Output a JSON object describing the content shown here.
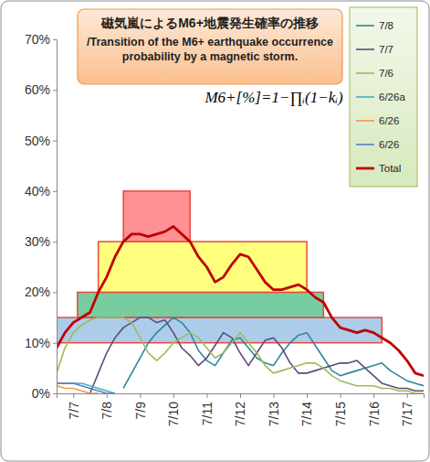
{
  "chart_data": {
    "type": "line",
    "title": "磁気嵐によるM6+地震発生確率の推移",
    "subtitle": "/Transition of the M6+ earthquake occurrence probability by a magnetic storm.",
    "annotation": "M6+[%]=1−∏ᵢ(1−kᵢ)",
    "categories": [
      null,
      null,
      "7/7",
      null,
      null,
      null,
      "7/8",
      null,
      null,
      null,
      "7/9",
      null,
      null,
      null,
      "7/10",
      null,
      null,
      null,
      "7/11",
      null,
      null,
      null,
      "7/12",
      null,
      null,
      null,
      "7/13",
      null,
      null,
      null,
      "7/14",
      null,
      null,
      null,
      "7/15",
      null,
      null,
      null,
      "7/16",
      null,
      null,
      null,
      "7/17",
      null,
      null
    ],
    "ylim": [
      0,
      70
    ],
    "yticks": [
      {
        "value": 0,
        "label": "0%"
      },
      {
        "value": 10,
        "label": "10%"
      },
      {
        "value": 20,
        "label": "20%"
      },
      {
        "value": 30,
        "label": "30%"
      },
      {
        "value": 40,
        "label": "40%"
      },
      {
        "value": 50,
        "label": "50%"
      },
      {
        "value": 60,
        "label": "60%"
      },
      {
        "value": 70,
        "label": "70%"
      }
    ],
    "grid": false,
    "legend": "top-right",
    "bands": [
      {
        "from": 0,
        "to": 39,
        "low": 10,
        "high": 15,
        "color": "#9dc3e6"
      },
      {
        "from": 2.5,
        "to": 32,
        "low": 15,
        "high": 20,
        "color": "#5fc48f"
      },
      {
        "from": 5,
        "to": 30,
        "low": 20,
        "high": 30,
        "color": "#ffff66"
      },
      {
        "from": 8,
        "to": 16,
        "low": 30,
        "high": 40,
        "color": "#ff7c80"
      }
    ],
    "series": [
      {
        "name": "7/8",
        "color": "#31859c",
        "values": [
          null,
          null,
          null,
          null,
          null,
          null,
          null,
          null,
          1,
          4,
          7,
          10,
          12,
          13.5,
          15,
          14,
          12,
          8.5,
          6.5,
          5.5,
          8,
          10.5,
          11,
          9,
          7,
          6,
          5.5,
          8,
          10,
          11.5,
          12,
          9.5,
          7,
          4.5,
          3.5,
          4,
          4.5,
          5,
          5.5,
          6,
          4.5,
          3.5,
          2.5,
          2,
          1.5
        ]
      },
      {
        "name": "7/7",
        "color": "#604a7b",
        "values": [
          null,
          null,
          null,
          null,
          0,
          4,
          8,
          11,
          13,
          14,
          15,
          15,
          14,
          14.5,
          12,
          9,
          7.5,
          5.5,
          7,
          9.5,
          12,
          11,
          8,
          5.5,
          8,
          10.5,
          11,
          9,
          6,
          4,
          4,
          4.5,
          5,
          5.5,
          6,
          6,
          6.5,
          5,
          3.5,
          2,
          1.5,
          1,
          1,
          0.5,
          0.5
        ]
      },
      {
        "name": "7/6",
        "color": "#9bbb59",
        "values": [
          4,
          9,
          12,
          13.5,
          14.5,
          15,
          15,
          15,
          15,
          14,
          11,
          8,
          6.5,
          8,
          10,
          11,
          12,
          11,
          9,
          7,
          8,
          10,
          12,
          10,
          8,
          5.5,
          4,
          4.5,
          5,
          5.5,
          6,
          6,
          5,
          3.5,
          2.5,
          2,
          1.5,
          1.5,
          1.5,
          1,
          1,
          0.5,
          0.5,
          0,
          0
        ]
      },
      {
        "name": "6/26a",
        "color": "#4bacc6",
        "values": [
          2,
          2,
          2,
          2,
          1.5,
          1,
          0.5,
          0,
          null,
          null,
          null,
          null,
          null,
          null,
          null,
          null,
          null,
          null,
          null,
          null,
          null,
          null,
          null,
          null,
          null,
          null,
          null,
          null,
          null,
          null,
          null,
          null,
          null,
          null,
          null,
          null,
          null,
          null,
          null,
          null,
          null,
          null,
          null,
          null,
          null
        ]
      },
      {
        "name": "6/26",
        "color": "#f79646",
        "values": [
          1.5,
          1,
          1,
          0.5,
          0,
          0,
          null,
          null,
          null,
          null,
          null,
          null,
          null,
          null,
          null,
          null,
          null,
          null,
          null,
          null,
          null,
          null,
          null,
          null,
          null,
          null,
          null,
          null,
          null,
          null,
          null,
          null,
          null,
          null,
          null,
          null,
          null,
          null,
          null,
          null,
          null,
          null,
          null,
          null,
          null
        ]
      },
      {
        "name": "6/26",
        "color": "#4f81bd",
        "values": [
          2,
          2,
          2,
          1.5,
          1,
          0.5,
          0,
          0,
          null,
          null,
          null,
          null,
          null,
          null,
          null,
          null,
          null,
          null,
          null,
          null,
          null,
          null,
          null,
          null,
          null,
          null,
          null,
          null,
          null,
          null,
          null,
          null,
          null,
          null,
          null,
          null,
          null,
          null,
          null,
          null,
          null,
          null,
          null,
          null,
          null
        ]
      },
      {
        "name": "Total",
        "color": "#c00000",
        "values": [
          9,
          12,
          14,
          15,
          16,
          20,
          23,
          27,
          30,
          31.5,
          31.5,
          31,
          31.5,
          32,
          33,
          31.5,
          30,
          27,
          25,
          22,
          23,
          25.5,
          27.5,
          27,
          24.5,
          22,
          20.5,
          20.5,
          21,
          21.5,
          20.5,
          19,
          18,
          15,
          13,
          12.5,
          12,
          12.5,
          12,
          11,
          10,
          8.5,
          6.5,
          4,
          3.5
        ]
      }
    ]
  }
}
